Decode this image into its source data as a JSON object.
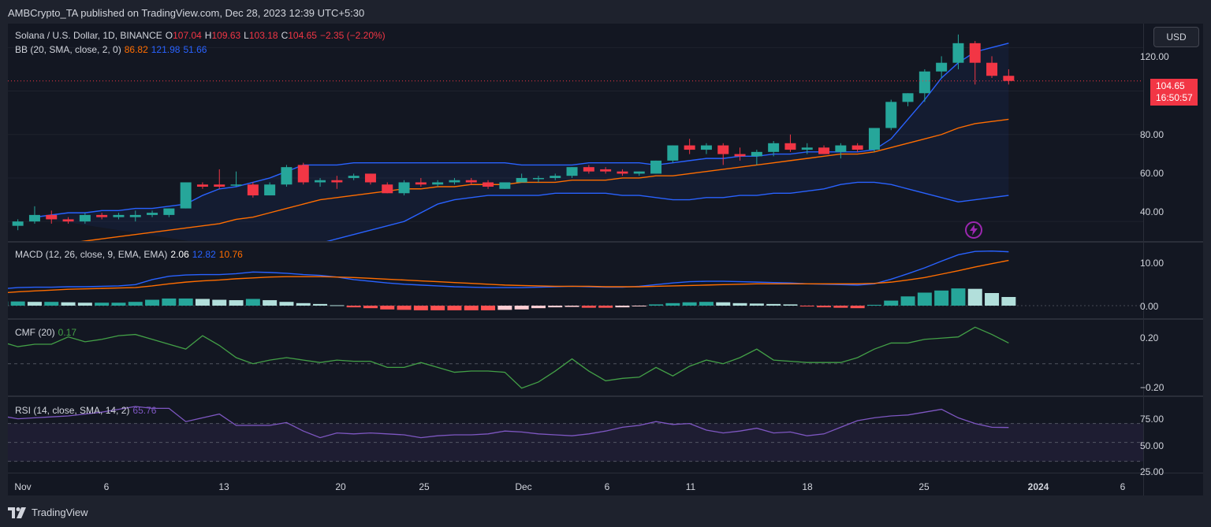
{
  "publish_line": "AMBCrypto_TA published on TradingView.com, Dec 28, 2023 12:39 UTC+5:30",
  "currency_button": "USD",
  "brand": "TradingView",
  "colors": {
    "up": "#26a69a",
    "down": "#f23645",
    "bb_basis": "#ff6d00",
    "bb_band": "#2962ff",
    "macd_line": "#2962ff",
    "signal_line": "#ff6d00",
    "cmf": "#43a047",
    "rsi": "#7e57c2",
    "background": "#131722"
  },
  "main_legend": {
    "symbol": "Solana / U.S. Dollar, 1D, BINANCE",
    "o_label": "O",
    "o_value": "107.04",
    "h_label": "H",
    "h_value": "109.63",
    "l_label": "L",
    "l_value": "103.18",
    "c_label": "C",
    "c_value": "104.65",
    "change": "−2.35 (−2.20%)"
  },
  "bb_legend": {
    "name": "BB (20, SMA, close, 2, 0)",
    "basis": "86.82",
    "upper": "121.98",
    "lower": "51.66"
  },
  "macd_legend": {
    "name": "MACD (12, 26, close, 9, EMA, EMA)",
    "hist": "2.06",
    "macd": "12.82",
    "signal": "10.76"
  },
  "cmf_legend": {
    "name": "CMF (20)",
    "value": "0.17"
  },
  "rsi_legend": {
    "name": "RSI (14, close, SMA, 14, 2)",
    "value": "65.76"
  },
  "price_tag": {
    "price": "104.65",
    "countdown": "16:50:57"
  },
  "price_axis": [
    "120.00",
    "104.65",
    "80.00",
    "60.00",
    "40.00"
  ],
  "macd_axis": [
    "10.00",
    "0.00"
  ],
  "cmf_axis": [
    "0.20",
    "−0.20"
  ],
  "rsi_axis": [
    "75.00",
    "50.00",
    "25.00"
  ],
  "time_axis": [
    {
      "label": "Nov",
      "bold": false
    },
    {
      "label": "6",
      "bold": false
    },
    {
      "label": "13",
      "bold": false
    },
    {
      "label": "20",
      "bold": false
    },
    {
      "label": "25",
      "bold": false
    },
    {
      "label": "Dec",
      "bold": false
    },
    {
      "label": "6",
      "bold": false
    },
    {
      "label": "11",
      "bold": false
    },
    {
      "label": "18",
      "bold": false
    },
    {
      "label": "25",
      "bold": false
    },
    {
      "label": "2024",
      "bold": true
    },
    {
      "label": "6",
      "bold": false
    }
  ],
  "chart_data": {
    "type": "candlestick",
    "ylim": [
      31,
      131
    ],
    "candles": [
      {
        "o": 38,
        "h": 41,
        "l": 36,
        "c": 40
      },
      {
        "o": 40,
        "h": 47,
        "l": 39,
        "c": 43
      },
      {
        "o": 43,
        "h": 45,
        "l": 39,
        "c": 41
      },
      {
        "o": 41,
        "h": 42,
        "l": 39,
        "c": 40
      },
      {
        "o": 40,
        "h": 44,
        "l": 39,
        "c": 43
      },
      {
        "o": 43,
        "h": 44,
        "l": 41,
        "c": 42
      },
      {
        "o": 42,
        "h": 44,
        "l": 41,
        "c": 43
      },
      {
        "o": 42,
        "h": 45,
        "l": 40,
        "c": 43
      },
      {
        "o": 43,
        "h": 45,
        "l": 42,
        "c": 44
      },
      {
        "o": 43,
        "h": 46,
        "l": 42,
        "c": 46
      },
      {
        "o": 46,
        "h": 58,
        "l": 46,
        "c": 58
      },
      {
        "o": 57,
        "h": 58,
        "l": 55,
        "c": 56
      },
      {
        "o": 57,
        "h": 64,
        "l": 55,
        "c": 56
      },
      {
        "o": 57,
        "h": 63,
        "l": 56,
        "c": 57
      },
      {
        "o": 57,
        "h": 58,
        "l": 51,
        "c": 52
      },
      {
        "o": 52,
        "h": 58,
        "l": 52,
        "c": 57
      },
      {
        "o": 57,
        "h": 66,
        "l": 56,
        "c": 65
      },
      {
        "o": 66,
        "h": 67,
        "l": 57,
        "c": 58
      },
      {
        "o": 58,
        "h": 60,
        "l": 56,
        "c": 59
      },
      {
        "o": 59,
        "h": 61,
        "l": 55,
        "c": 58
      },
      {
        "o": 60,
        "h": 62,
        "l": 59,
        "c": 61
      },
      {
        "o": 62,
        "h": 62,
        "l": 57,
        "c": 58
      },
      {
        "o": 57,
        "h": 58,
        "l": 53,
        "c": 53
      },
      {
        "o": 53,
        "h": 59,
        "l": 52,
        "c": 58
      },
      {
        "o": 58,
        "h": 60,
        "l": 56,
        "c": 57
      },
      {
        "o": 57,
        "h": 59,
        "l": 56,
        "c": 58
      },
      {
        "o": 58,
        "h": 60,
        "l": 57,
        "c": 59
      },
      {
        "o": 59,
        "h": 60,
        "l": 57,
        "c": 58
      },
      {
        "o": 58,
        "h": 59,
        "l": 55,
        "c": 56
      },
      {
        "o": 55,
        "h": 58,
        "l": 55,
        "c": 58
      },
      {
        "o": 58,
        "h": 62,
        "l": 58,
        "c": 60
      },
      {
        "o": 60,
        "h": 61,
        "l": 58,
        "c": 60
      },
      {
        "o": 60,
        "h": 62,
        "l": 59,
        "c": 61
      },
      {
        "o": 61,
        "h": 65,
        "l": 60,
        "c": 65
      },
      {
        "o": 65,
        "h": 66,
        "l": 62,
        "c": 63
      },
      {
        "o": 64,
        "h": 65,
        "l": 62,
        "c": 63
      },
      {
        "o": 63,
        "h": 64,
        "l": 61,
        "c": 62
      },
      {
        "o": 62,
        "h": 63,
        "l": 61,
        "c": 63
      },
      {
        "o": 62,
        "h": 68,
        "l": 62,
        "c": 68
      },
      {
        "o": 68,
        "h": 75,
        "l": 67,
        "c": 75
      },
      {
        "o": 75,
        "h": 78,
        "l": 71,
        "c": 73
      },
      {
        "o": 73,
        "h": 76,
        "l": 71,
        "c": 75
      },
      {
        "o": 75,
        "h": 76,
        "l": 66,
        "c": 71
      },
      {
        "o": 71,
        "h": 74,
        "l": 68,
        "c": 70
      },
      {
        "o": 70,
        "h": 73,
        "l": 66,
        "c": 72
      },
      {
        "o": 72,
        "h": 77,
        "l": 70,
        "c": 76
      },
      {
        "o": 76,
        "h": 80,
        "l": 72,
        "c": 73
      },
      {
        "o": 73,
        "h": 76,
        "l": 71,
        "c": 74
      },
      {
        "o": 74,
        "h": 75,
        "l": 71,
        "c": 71
      },
      {
        "o": 72,
        "h": 76,
        "l": 69,
        "c": 75
      },
      {
        "o": 75,
        "h": 76,
        "l": 72,
        "c": 73
      },
      {
        "o": 73,
        "h": 83,
        "l": 72,
        "c": 83
      },
      {
        "o": 83,
        "h": 96,
        "l": 82,
        "c": 95
      },
      {
        "o": 95,
        "h": 99,
        "l": 93,
        "c": 99
      },
      {
        "o": 99,
        "h": 110,
        "l": 95,
        "c": 109
      },
      {
        "o": 109,
        "h": 116,
        "l": 106,
        "c": 113
      },
      {
        "o": 113,
        "h": 126,
        "l": 110,
        "c": 122
      },
      {
        "o": 122,
        "h": 123,
        "l": 103,
        "c": 113
      },
      {
        "o": 113,
        "h": 116,
        "l": 106,
        "c": 107
      },
      {
        "o": 107,
        "h": 110,
        "l": 103,
        "c": 104.65
      }
    ],
    "bb_upper": [
      42,
      43,
      44,
      44,
      45,
      45,
      46,
      46,
      47,
      48,
      52,
      55,
      56,
      58,
      60,
      63,
      66,
      66,
      66,
      67,
      67,
      67,
      67,
      67,
      67,
      67,
      67,
      67,
      67,
      66,
      66,
      66,
      66,
      67,
      67,
      67,
      67,
      66,
      67,
      68,
      69,
      69,
      70,
      70,
      71,
      71,
      72,
      72,
      72,
      72,
      73,
      78,
      87,
      96,
      106,
      113,
      118,
      120,
      122
    ],
    "bb_basis": [
      28,
      29,
      30,
      31,
      32,
      33,
      34,
      35,
      36,
      37,
      38,
      39,
      41,
      42,
      44,
      46,
      48,
      50,
      51,
      52,
      53,
      54,
      55,
      55,
      56,
      56,
      57,
      57,
      57,
      58,
      58,
      58,
      59,
      59,
      59,
      60,
      60,
      61,
      61,
      62,
      63,
      64,
      65,
      66,
      67,
      68,
      69,
      70,
      71,
      71,
      72,
      74,
      76,
      78,
      80,
      83,
      85,
      86,
      87
    ],
    "bb_lower": [
      null,
      null,
      null,
      null,
      null,
      null,
      null,
      null,
      30,
      30,
      29,
      29,
      28,
      28,
      28,
      30,
      32,
      34,
      36,
      38,
      40,
      44,
      48,
      50,
      51,
      52,
      52,
      52,
      52,
      53,
      53,
      53,
      53,
      52,
      52,
      51,
      50,
      50,
      51,
      51,
      52,
      52,
      53,
      53,
      54,
      55,
      57,
      58,
      58,
      57,
      55,
      53,
      51,
      49,
      50,
      51,
      52
    ],
    "macd_hist": [
      1.0,
      1.0,
      1.0,
      0.9,
      0.9,
      0.8,
      0.7,
      0.7,
      0.7,
      0.9,
      1.4,
      1.7,
      1.7,
      1.6,
      1.4,
      1.3,
      1.6,
      1.3,
      0.9,
      0.6,
      0.4,
      0.1,
      -0.4,
      -0.6,
      -0.9,
      -1.0,
      -1.1,
      -1.1,
      -1.1,
      -1.1,
      -1.1,
      -1.0,
      -0.9,
      -0.6,
      -0.4,
      -0.3,
      -0.5,
      -0.5,
      -0.4,
      -0.1,
      0.3,
      0.6,
      0.8,
      0.9,
      0.8,
      0.6,
      0.5,
      0.4,
      0.3,
      -0.2,
      -0.4,
      -0.5,
      -0.6,
      0.2,
      1.2,
      2.2,
      3.1,
      3.6,
      4.1,
      4.0,
      3.0,
      2.06
    ],
    "macd_line": [
      3.5,
      4.0,
      4.3,
      4.4,
      4.4,
      4.5,
      4.5,
      4.6,
      4.7,
      5.0,
      6.2,
      7.0,
      7.3,
      7.4,
      7.4,
      7.6,
      8.0,
      7.9,
      7.7,
      7.4,
      7.2,
      6.8,
      6.2,
      5.8,
      5.4,
      5.1,
      4.9,
      4.7,
      4.5,
      4.4,
      4.3,
      4.3,
      4.3,
      4.4,
      4.5,
      4.6,
      4.5,
      4.4,
      4.4,
      4.6,
      5.0,
      5.4,
      5.7,
      5.8,
      5.8,
      5.7,
      5.6,
      5.5,
      5.4,
      5.2,
      5.1,
      5.0,
      4.9,
      5.2,
      6.3,
      7.6,
      9.0,
      10.6,
      12.1,
      12.9,
      13.0,
      12.82
    ],
    "signal_line": [
      2.5,
      3.0,
      3.3,
      3.5,
      3.7,
      3.9,
      4.0,
      4.1,
      4.2,
      4.3,
      4.7,
      5.2,
      5.6,
      5.9,
      6.1,
      6.4,
      6.6,
      6.8,
      6.9,
      6.9,
      6.9,
      6.8,
      6.7,
      6.5,
      6.3,
      6.1,
      5.9,
      5.7,
      5.5,
      5.3,
      5.1,
      4.9,
      4.8,
      4.7,
      4.6,
      4.6,
      4.6,
      4.5,
      4.5,
      4.5,
      4.6,
      4.7,
      4.8,
      4.9,
      5.0,
      5.1,
      5.2,
      5.2,
      5.2,
      5.2,
      5.2,
      5.2,
      5.2,
      5.3,
      5.6,
      6.1,
      6.7,
      7.5,
      8.3,
      9.2,
      10.0,
      10.76
    ],
    "cmf": [
      0.25,
      0.18,
      0.14,
      0.16,
      0.16,
      0.22,
      0.18,
      0.2,
      0.23,
      0.24,
      0.2,
      0.16,
      0.12,
      0.23,
      0.15,
      0.05,
      0.0,
      0.03,
      0.05,
      0.03,
      0.01,
      0.03,
      0.02,
      0.02,
      -0.03,
      -0.03,
      0.01,
      -0.03,
      -0.07,
      -0.06,
      -0.06,
      -0.07,
      -0.2,
      -0.15,
      -0.06,
      0.04,
      -0.06,
      -0.14,
      -0.12,
      -0.11,
      -0.03,
      -0.1,
      -0.02,
      0.03,
      0.0,
      0.05,
      0.12,
      0.03,
      0.02,
      0.01,
      0.01,
      0.01,
      0.05,
      0.12,
      0.17,
      0.17,
      0.2,
      0.21,
      0.22,
      0.3,
      0.24,
      0.17
    ],
    "rsi": [
      82,
      78,
      75,
      76,
      77,
      78,
      80,
      82,
      85,
      88,
      86,
      86,
      72,
      76,
      80,
      68,
      68,
      68,
      71,
      62,
      55,
      60,
      59,
      60,
      59,
      58,
      55,
      57,
      58,
      58,
      59,
      62,
      61,
      59,
      58,
      57,
      59,
      62,
      66,
      68,
      72,
      69,
      70,
      63,
      60,
      62,
      65,
      60,
      61,
      57,
      59,
      66,
      73,
      76,
      78,
      79,
      82,
      85,
      76,
      70,
      66,
      65.76
    ]
  }
}
